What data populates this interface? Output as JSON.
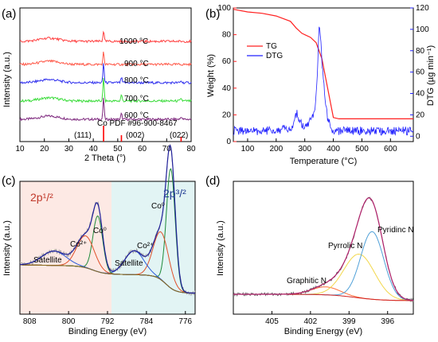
{
  "figure_labels": [
    "(a)",
    "(b)",
    "(c)",
    "(d)"
  ],
  "chart_data": [
    {
      "panel": "(a)",
      "type": "line",
      "xlabel": "2 Theta (°)",
      "ylabel": "Intensity (a.u.)",
      "xlim": [
        10,
        80
      ],
      "xticks": [
        "10",
        "20",
        "30",
        "40",
        "50",
        "60",
        "70",
        "80"
      ],
      "series": [
        {
          "name": "1000 °C",
          "color": "#7f2a7f",
          "offset": 4,
          "peaks": [
            {
              "x": 44.2,
              "h": 4.5
            },
            {
              "x": 51.5,
              "h": 1.2
            },
            {
              "x": 75.9,
              "h": 0.6
            }
          ]
        },
        {
          "name": "900 °C",
          "color": "#3cdc3c",
          "offset": 3,
          "peaks": [
            {
              "x": 44.2,
              "h": 5.0
            },
            {
              "x": 51.5,
              "h": 1.4
            },
            {
              "x": 75.9,
              "h": 0.6
            }
          ]
        },
        {
          "name": "800 °C",
          "color": "#3232ee",
          "offset": 2,
          "peaks": [
            {
              "x": 44.2,
              "h": 4.2
            },
            {
              "x": 51.5,
              "h": 1.1
            },
            {
              "x": 75.9,
              "h": 0.4
            }
          ]
        },
        {
          "name": "700 °C",
          "color": "#ff5a4a",
          "offset": 1,
          "peaks": [
            {
              "x": 44.2,
              "h": 2.6
            }
          ]
        },
        {
          "name": "600 °C",
          "color": "#ff4040",
          "offset": 0,
          "peaks": [
            {
              "x": 44.2,
              "h": 2.2
            }
          ]
        }
      ],
      "reference": {
        "label": "Co PDF #96-900-8467",
        "lines": [
          {
            "x": 44.2,
            "hkl": "(111)"
          },
          {
            "x": 51.5,
            "hkl": "(002)"
          },
          {
            "x": 75.9,
            "hkl": "(022)"
          }
        ],
        "color": "#ff0000"
      }
    },
    {
      "panel": "(b)",
      "type": "line",
      "xlabel": "Temperature (°C)",
      "ylabel": "Weight (%)",
      "ylabel_right": "DTG (µg min⁻¹)",
      "xlim": [
        50,
        680
      ],
      "xticks": [
        "100",
        "200",
        "300",
        "400",
        "500",
        "600"
      ],
      "ylim": [
        0,
        100
      ],
      "yticks": [
        "0",
        "20",
        "40",
        "60",
        "80",
        "100"
      ],
      "ylim_right": [
        -5,
        120
      ],
      "yticks_right": [
        "0",
        "20",
        "40",
        "60",
        "80",
        "100",
        "120"
      ],
      "legend": [
        "TG",
        "DTG"
      ],
      "series": [
        {
          "name": "TG",
          "color": "#ff2020",
          "x": [
            50,
            100,
            150,
            200,
            250,
            270,
            290,
            320,
            340,
            360,
            380,
            400,
            420,
            500,
            600,
            680
          ],
          "y": [
            99,
            97,
            96,
            94,
            90,
            85,
            81,
            78,
            74,
            62,
            40,
            18,
            17,
            17,
            17,
            17
          ]
        },
        {
          "name": "DTG",
          "color": "#2020ff",
          "x": [
            50,
            150,
            250,
            265,
            272,
            280,
            300,
            335,
            345,
            350,
            355,
            360,
            370,
            380,
            400,
            500,
            680
          ],
          "y": [
            5,
            5,
            7,
            14,
            22,
            14,
            7,
            20,
            60,
            103,
            95,
            70,
            40,
            15,
            5,
            5,
            5
          ]
        }
      ]
    },
    {
      "panel": "(c)",
      "type": "line",
      "xlabel": "Binding Energy (eV)",
      "ylabel": "Intensity (a.u.)",
      "xlim": [
        810,
        774
      ],
      "xticks": [
        "808",
        "800",
        "792",
        "784",
        "776"
      ],
      "region_labels": [
        "2p¹/²",
        "2p³/²"
      ],
      "annotations": [
        {
          "text": "Satellite",
          "x": 804
        },
        {
          "text": "Co²⁺",
          "x": 797
        },
        {
          "text": "Co⁰",
          "x": 793.5
        },
        {
          "text": "Satellite",
          "x": 787
        },
        {
          "text": "Co²⁺",
          "x": 783
        },
        {
          "text": "Co⁰",
          "x": 779
        }
      ]
    },
    {
      "panel": "(d)",
      "type": "line",
      "xlabel": "Binding Energy (eV)",
      "ylabel": "Intensity (a.u.)",
      "xlim": [
        408,
        394
      ],
      "xticks": [
        "405",
        "402",
        "399",
        "396"
      ],
      "annotations": [
        {
          "text": "Graphitic N",
          "x": 401.2
        },
        {
          "text": "Pyrrolic N",
          "x": 399.3
        },
        {
          "text": "Pyridinc N",
          "x": 396.3
        }
      ]
    }
  ]
}
